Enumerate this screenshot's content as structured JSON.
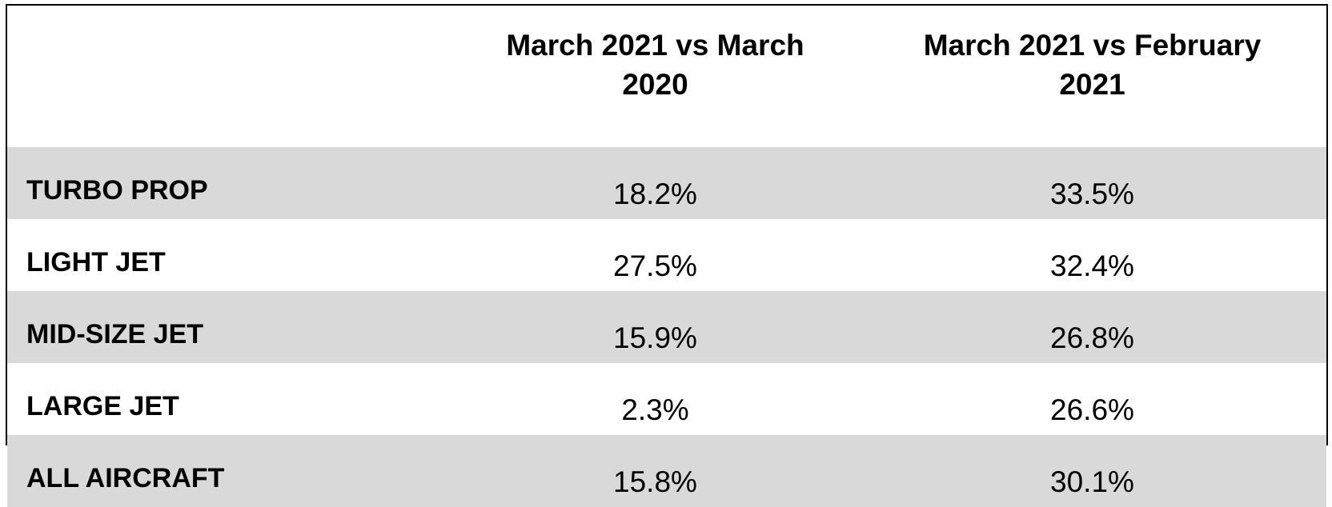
{
  "table": {
    "columns": [
      "March 2021 vs March 2020",
      "March 2021 vs February 2021"
    ],
    "rows": [
      [
        "TURBO PROP",
        "18.2%",
        "33.5%"
      ],
      [
        "LIGHT JET",
        "27.5%",
        "32.4%"
      ],
      [
        "MID-SIZE JET",
        "15.9%",
        "26.8%"
      ],
      [
        "LARGE JET",
        "2.3%",
        "26.6%"
      ],
      [
        "ALL AIRCRAFT",
        "15.8%",
        "30.1%"
      ]
    ]
  }
}
